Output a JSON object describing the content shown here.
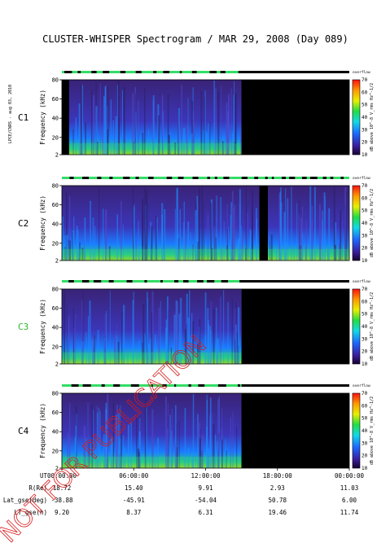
{
  "title": "CLUSTER-WHISPER Spectrogram / MAR 29, 2008 (Day 089)",
  "side_label": "LPCE/CNRS - aug 03, 2010",
  "watermark": "NOT FOR PUBLICATION",
  "colors": {
    "watermark": "#d81818",
    "status_on": "#33dd66",
    "status_off": "#000000",
    "background_fill": "#111111"
  },
  "chart_data": {
    "type": "heatmap",
    "title": "CLUSTER-WHISPER Spectrogram / MAR 29, 2008 (Day 089)",
    "xlabel": "UT",
    "ylabel": "Frequency (kHz)",
    "x_ticks": [
      "00:00:00",
      "06:00:00",
      "12:00:00",
      "18:00:00",
      "00:00:00"
    ],
    "xlim_hours": [
      0,
      24
    ],
    "ylim": [
      2,
      80
    ],
    "y_ticks": [
      2,
      20,
      40,
      60,
      80
    ],
    "colorbar": {
      "label": "dB above 10^-8 V_rms Hz^-1/2",
      "ticks": [
        10,
        20,
        30,
        40,
        50,
        60,
        70
      ],
      "range": [
        10,
        70
      ],
      "top_label": "overflow"
    },
    "panels": [
      {
        "name": "C1",
        "label_color": "#000000",
        "data_coverage_hours": [
          [
            0,
            15
          ]
        ],
        "gap_hours": [
          [
            15,
            24
          ]
        ],
        "black_start_hours": [
          0,
          0.6
        ]
      },
      {
        "name": "C2",
        "label_color": "#000000",
        "data_coverage_hours": [
          [
            0,
            24
          ]
        ],
        "gap_hours": [
          [
            16.5,
            17.2
          ]
        ]
      },
      {
        "name": "C3",
        "label_color": "#2eb82e",
        "data_coverage_hours": [
          [
            0,
            15
          ]
        ],
        "gap_hours": [
          [
            15,
            24
          ]
        ]
      },
      {
        "name": "C4",
        "label_color": "#000000",
        "data_coverage_hours": [
          [
            0,
            15
          ]
        ],
        "gap_hours": [
          [
            15,
            24
          ]
        ]
      }
    ],
    "ephemeris": {
      "rows": [
        {
          "label": "R(Re)",
          "values": [
            "18.72",
            "15.40",
            "9.91",
            "2.93",
            "11.03"
          ]
        },
        {
          "label": "Lat_gse(deg)",
          "values": [
            "-38.88",
            "-45.91",
            "-54.04",
            "50.78",
            "6.00"
          ]
        },
        {
          "label": "LT_gse(h)",
          "values": [
            "9.20",
            "8.37",
            "6.31",
            "19.46",
            "11.74"
          ]
        }
      ]
    }
  }
}
